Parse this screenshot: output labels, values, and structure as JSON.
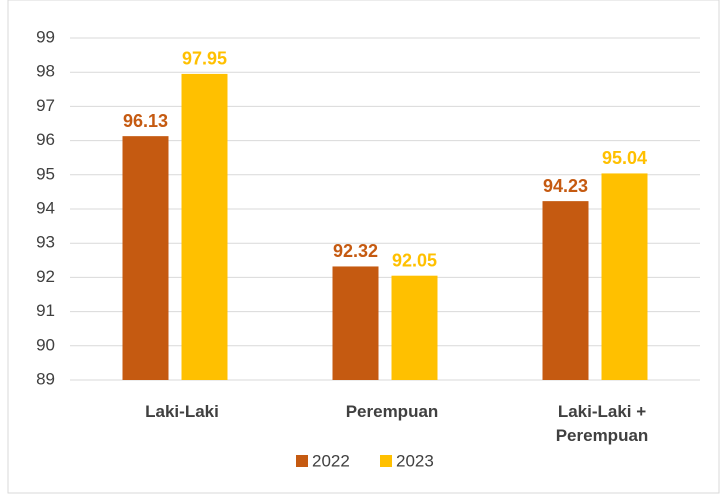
{
  "chart_data": {
    "type": "bar",
    "categories": [
      "Laki-Laki",
      "Perempuan",
      "Laki-Laki + Perempuan"
    ],
    "series": [
      {
        "name": "2022",
        "color": "#c55a11",
        "values": [
          96.13,
          92.32,
          94.23
        ]
      },
      {
        "name": "2023",
        "color": "#ffc000",
        "values": [
          97.95,
          92.05,
          95.04
        ]
      }
    ],
    "ylim": [
      89,
      99
    ],
    "yticks": [
      89,
      90,
      91,
      92,
      93,
      94,
      95,
      96,
      97,
      98,
      99
    ],
    "grid": true,
    "legend": "bottom"
  }
}
